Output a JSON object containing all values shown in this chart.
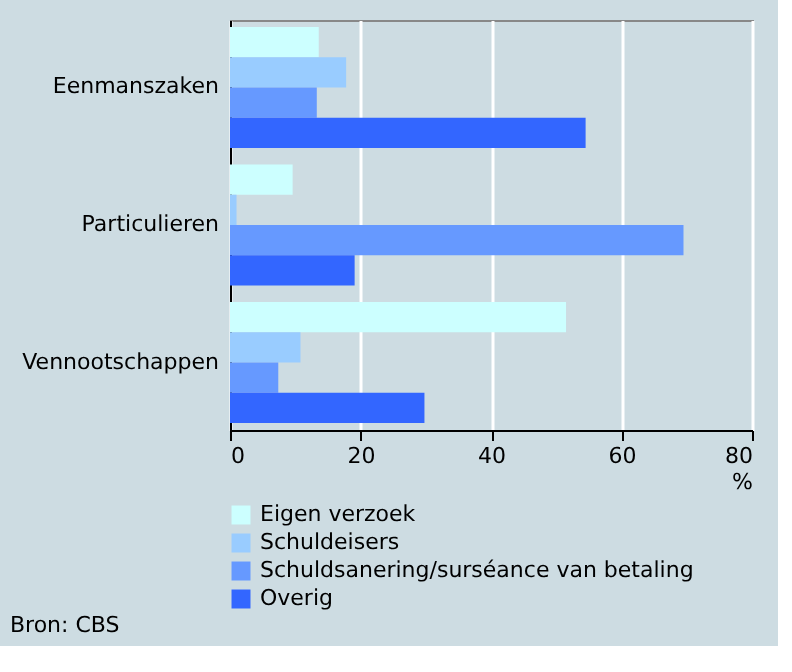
{
  "chart_data": {
    "type": "bar",
    "orientation": "horizontal",
    "xlabel": "%",
    "categories": [
      "Eenmanszaken",
      "Particulieren",
      "Vennootschappen"
    ],
    "series": [
      {
        "name": "Eigen verzoek",
        "color": "#ccffff",
        "values": [
          13.6,
          9.6,
          51.5
        ]
      },
      {
        "name": "Schuldeisers",
        "color": "#99ccff",
        "values": [
          17.8,
          1.0,
          10.8
        ]
      },
      {
        "name": "Schuldsanering/surséance van betaling",
        "color": "#6699ff",
        "values": [
          13.3,
          69.5,
          7.4
        ]
      },
      {
        "name": "Overig",
        "color": "#3366ff",
        "values": [
          54.5,
          19.1,
          29.8
        ]
      }
    ],
    "xlim": [
      0,
      80
    ],
    "xticks": [
      0,
      20,
      40,
      60,
      80
    ],
    "grid": "x",
    "legend": "bottom",
    "annotations": [
      "Bron: CBS"
    ]
  }
}
